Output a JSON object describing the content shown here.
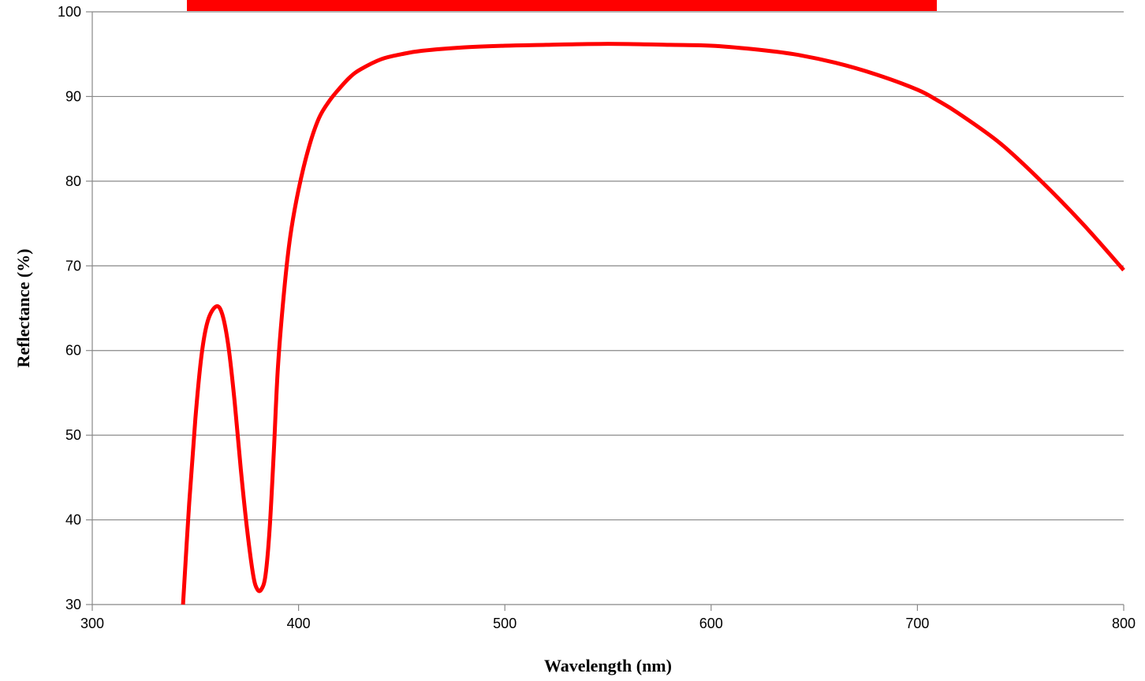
{
  "chart_data": {
    "type": "line",
    "title": "",
    "xlabel": "Wavelength (nm)",
    "ylabel": "Reflectance (%)",
    "xlim": [
      300,
      800
    ],
    "ylim": [
      30,
      100
    ],
    "x_ticks": [
      "300",
      "400",
      "500",
      "600",
      "700",
      "800"
    ],
    "y_ticks": [
      "30",
      "40",
      "50",
      "60",
      "70",
      "80",
      "90",
      "100"
    ],
    "grid": "horizontal",
    "legend": "top (solid red bar, no readable text)",
    "legend_color": "#FF0000",
    "series": [
      {
        "color": "#FF0000",
        "x": [
          344,
          347,
          350,
          353,
          356,
          360,
          363,
          366,
          369,
          372,
          375,
          378,
          380,
          382,
          384,
          386,
          388,
          390,
          393,
          396,
          400,
          405,
          410,
          415,
          420,
          425,
          430,
          440,
          450,
          460,
          480,
          500,
          520,
          540,
          560,
          580,
          600,
          620,
          640,
          660,
          680,
          700,
          710,
          720,
          740,
          760,
          780,
          800
        ],
        "y": [
          30.0,
          42.0,
          52.0,
          59.5,
          63.5,
          65.2,
          64.3,
          60.5,
          54.0,
          46.0,
          39.0,
          33.5,
          31.8,
          31.8,
          33.5,
          39.0,
          48.0,
          58.0,
          67.0,
          73.5,
          79.0,
          84.0,
          87.5,
          89.5,
          91.0,
          92.3,
          93.2,
          94.4,
          95.0,
          95.4,
          95.8,
          96.0,
          96.1,
          96.2,
          96.2,
          96.1,
          96.0,
          95.6,
          95.0,
          94.0,
          92.6,
          90.8,
          89.5,
          88.0,
          84.5,
          80.0,
          75.0,
          69.5
        ]
      }
    ]
  }
}
